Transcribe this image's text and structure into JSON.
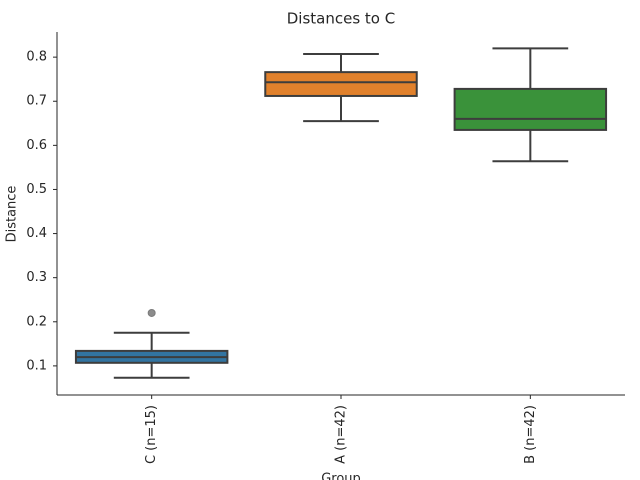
{
  "chart_data": {
    "type": "box",
    "title": "Distances to C",
    "x_label": "Group",
    "y_label": "Distance",
    "categories": [
      "C (n=15)",
      "A (n=42)",
      "B (n=42)"
    ],
    "colors": [
      "#3274a1",
      "#e1812c",
      "#3a923a"
    ],
    "min": [
      0.073,
      0.655,
      0.564
    ],
    "q1": [
      0.107,
      0.712,
      0.635
    ],
    "median": [
      0.12,
      0.743,
      0.66
    ],
    "q3": [
      0.134,
      0.766,
      0.728
    ],
    "max": [
      0.175,
      0.807,
      0.82
    ],
    "outliers": [
      [
        0.22
      ],
      [],
      []
    ],
    "ylim": [
      0.034,
      0.857
    ],
    "yticks": [
      0.1,
      0.2,
      0.3,
      0.4,
      0.5,
      0.6,
      0.7,
      0.8
    ]
  }
}
